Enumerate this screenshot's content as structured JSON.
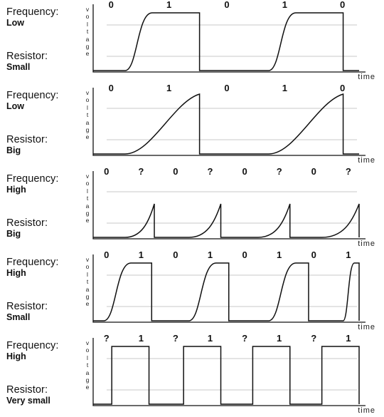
{
  "y_axis_label": "voltage",
  "x_axis_label": "time",
  "key_frequency": "Frequency:",
  "key_resistor": "Resistor:",
  "panels": [
    {
      "frequency": "Low",
      "resistor": "Small",
      "bits": [
        "0",
        "1",
        "0",
        "1",
        "0"
      ],
      "edges": [
        0.12,
        0.4,
        0.66,
        0.94
      ],
      "rise": "fast-s-curve"
    },
    {
      "frequency": "Low",
      "resistor": "Big",
      "bits": [
        "0",
        "1",
        "0",
        "1",
        "0"
      ],
      "edges": [
        0.12,
        0.4,
        0.66,
        0.94
      ],
      "rise": "slow"
    },
    {
      "frequency": "High",
      "resistor": "Big",
      "bits": [
        "0",
        "?",
        "0",
        "?",
        "0",
        "?",
        "0",
        "?"
      ],
      "edges": [
        0.12,
        0.23,
        0.36,
        0.48,
        0.62,
        0.74,
        0.86
      ],
      "rise": "incomplete"
    },
    {
      "frequency": "High",
      "resistor": "Small",
      "bits": [
        "0",
        "1",
        "0",
        "1",
        "0",
        "1",
        "0",
        "1"
      ],
      "edges": [
        0.04,
        0.22,
        0.36,
        0.51,
        0.66,
        0.81,
        0.94
      ],
      "rise": "fast-s-curve"
    },
    {
      "frequency": "High",
      "resistor": "Very small",
      "bits": [
        "?",
        "1",
        "?",
        "1",
        "?",
        "1",
        "?",
        "1"
      ],
      "edges": [
        0.07,
        0.21,
        0.34,
        0.48,
        0.6,
        0.74,
        0.86
      ],
      "rise": "instant"
    }
  ]
}
